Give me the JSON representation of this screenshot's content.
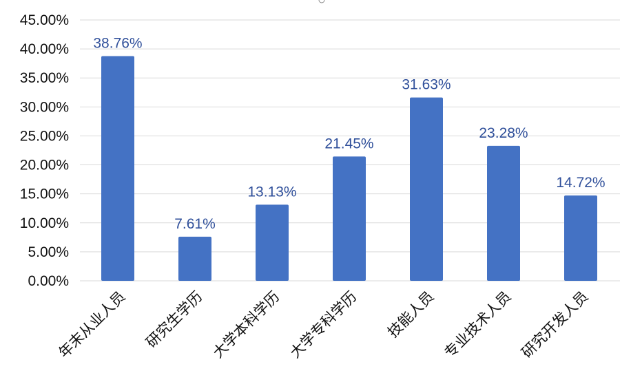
{
  "chart_data": {
    "type": "bar",
    "categories": [
      "年末从业人员",
      "研究生学历",
      "大学本科学历",
      "大学专科学历",
      "技能人员",
      "专业技术人员",
      "研究开发人员"
    ],
    "values": [
      38.76,
      7.61,
      13.13,
      21.45,
      31.63,
      23.28,
      14.72
    ],
    "data_labels": [
      "38.76%",
      "7.61%",
      "13.13%",
      "21.45%",
      "31.63%",
      "23.28%",
      "14.72%"
    ],
    "y_ticks": [
      "0.00%",
      "5.00%",
      "10.00%",
      "15.00%",
      "20.00%",
      "25.00%",
      "30.00%",
      "35.00%",
      "40.00%",
      "45.00%"
    ],
    "ylim": [
      0,
      45
    ],
    "grid": true,
    "legend": "none",
    "colors": {
      "bar": "#4472C4",
      "data_label": "#2F4F9A",
      "grid": "#D9D9D9"
    }
  }
}
